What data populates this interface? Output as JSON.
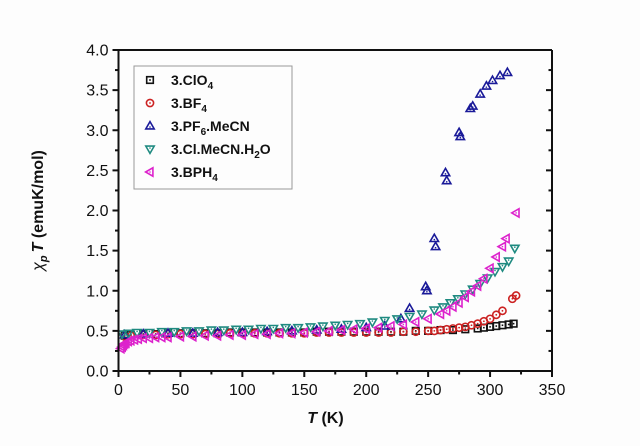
{
  "chart_data": {
    "type": "scatter",
    "title": "",
    "xlabel": "T (K)",
    "xlabel_parts": {
      "italic": "T",
      "rest": " (K)"
    },
    "ylabel": "χp T (emuK/mol)",
    "ylabel_parts": {
      "symbol": "χ",
      "sub": "p",
      "italic": "T",
      "rest": " (emuK/mol)"
    },
    "xlim": [
      0,
      350
    ],
    "ylim": [
      0.0,
      4.0
    ],
    "xticks": [
      0,
      50,
      100,
      150,
      200,
      250,
      300,
      350
    ],
    "xtick_labels": [
      "0",
      "50",
      "100",
      "150",
      "200",
      "250",
      "300",
      "350"
    ],
    "yticks": [
      0.0,
      0.5,
      1.0,
      1.5,
      2.0,
      2.5,
      3.0,
      3.5,
      4.0
    ],
    "ytick_labels": [
      "0.0",
      "0.5",
      "1.0",
      "1.5",
      "2.0",
      "2.5",
      "3.0",
      "3.5",
      "4.0"
    ],
    "grid": false,
    "legend_position": "top-left",
    "series": [
      {
        "name": "3.ClO4",
        "label_main": "3.ClO",
        "label_sub": "4",
        "label_tail": "",
        "marker": "square",
        "color": "#111111",
        "x": [
          5,
          10,
          20,
          30,
          40,
          50,
          60,
          70,
          80,
          90,
          100,
          110,
          120,
          130,
          140,
          150,
          160,
          170,
          180,
          190,
          200,
          210,
          220,
          230,
          240,
          250,
          260,
          270,
          280,
          290,
          295,
          300,
          305,
          310,
          315,
          319
        ],
        "y": [
          0.44,
          0.45,
          0.46,
          0.46,
          0.47,
          0.47,
          0.47,
          0.47,
          0.47,
          0.48,
          0.48,
          0.48,
          0.48,
          0.48,
          0.48,
          0.48,
          0.49,
          0.49,
          0.49,
          0.49,
          0.49,
          0.49,
          0.49,
          0.49,
          0.5,
          0.5,
          0.51,
          0.51,
          0.52,
          0.53,
          0.54,
          0.55,
          0.56,
          0.57,
          0.58,
          0.59
        ]
      },
      {
        "name": "3.BF4",
        "label_main": "3.BF",
        "label_sub": "4",
        "label_tail": "",
        "marker": "circle",
        "color": "#cc2222",
        "x": [
          5,
          10,
          20,
          30,
          40,
          50,
          60,
          70,
          80,
          90,
          100,
          110,
          120,
          130,
          140,
          150,
          160,
          170,
          180,
          190,
          200,
          210,
          220,
          230,
          240,
          250,
          255,
          260,
          265,
          270,
          275,
          280,
          285,
          290,
          295,
          300,
          305,
          310,
          318,
          321
        ],
        "y": [
          0.43,
          0.44,
          0.45,
          0.45,
          0.46,
          0.46,
          0.46,
          0.46,
          0.46,
          0.47,
          0.47,
          0.47,
          0.47,
          0.47,
          0.47,
          0.47,
          0.48,
          0.48,
          0.48,
          0.48,
          0.48,
          0.48,
          0.48,
          0.49,
          0.49,
          0.5,
          0.5,
          0.51,
          0.52,
          0.53,
          0.54,
          0.55,
          0.57,
          0.59,
          0.62,
          0.65,
          0.7,
          0.75,
          0.9,
          0.94
        ]
      },
      {
        "name": "3.PF6.MeCN",
        "label_main": "3.PF",
        "label_sub": "6",
        "label_tail": ".MeCN",
        "marker": "triangle-up",
        "color": "#1a1a99",
        "x": [
          5,
          20,
          40,
          60,
          80,
          100,
          120,
          140,
          160,
          180,
          200,
          215,
          228,
          235,
          248,
          249,
          255,
          256,
          264,
          265,
          275,
          276,
          284,
          286,
          292,
          297,
          302,
          308,
          314
        ],
        "y": [
          0.45,
          0.46,
          0.47,
          0.47,
          0.48,
          0.48,
          0.49,
          0.5,
          0.51,
          0.52,
          0.54,
          0.56,
          0.65,
          0.78,
          1.05,
          1.0,
          1.65,
          1.55,
          2.47,
          2.37,
          2.97,
          2.92,
          3.27,
          3.3,
          3.45,
          3.55,
          3.62,
          3.68,
          3.72
        ]
      },
      {
        "name": "3.Cl.MeCN.H2O",
        "label_main": "3.Cl.MeCN.H",
        "label_sub": "2",
        "label_tail": "O",
        "marker": "triangle-down",
        "color": "#1e8a80",
        "x": [
          3,
          8,
          15,
          25,
          35,
          45,
          55,
          65,
          75,
          85,
          95,
          105,
          115,
          125,
          135,
          145,
          155,
          165,
          175,
          185,
          195,
          205,
          215,
          225,
          235,
          245,
          255,
          262,
          268,
          274,
          280,
          286,
          292,
          298,
          304,
          310,
          315,
          320
        ],
        "y": [
          0.46,
          0.47,
          0.48,
          0.48,
          0.49,
          0.49,
          0.5,
          0.5,
          0.51,
          0.51,
          0.52,
          0.52,
          0.53,
          0.53,
          0.54,
          0.54,
          0.55,
          0.56,
          0.57,
          0.58,
          0.59,
          0.61,
          0.63,
          0.65,
          0.68,
          0.71,
          0.76,
          0.8,
          0.85,
          0.9,
          0.96,
          1.02,
          1.09,
          1.16,
          1.24,
          1.3,
          1.37,
          1.53
        ]
      },
      {
        "name": "3.BPH4",
        "label_main": "3.BPH",
        "label_sub": "4",
        "label_tail": "",
        "marker": "triangle-left",
        "color": "#dd22cc",
        "x": [
          2,
          3,
          4,
          5,
          6,
          8,
          10,
          13,
          16,
          20,
          25,
          30,
          35,
          40,
          50,
          60,
          70,
          80,
          90,
          100,
          110,
          120,
          130,
          140,
          150,
          160,
          170,
          180,
          190,
          200,
          210,
          220,
          230,
          240,
          250,
          260,
          265,
          270,
          275,
          280,
          285,
          290,
          295,
          300,
          305,
          310,
          313,
          321
        ],
        "y": [
          0.28,
          0.3,
          0.32,
          0.34,
          0.35,
          0.37,
          0.38,
          0.39,
          0.4,
          0.41,
          0.41,
          0.42,
          0.42,
          0.42,
          0.43,
          0.43,
          0.44,
          0.44,
          0.45,
          0.45,
          0.46,
          0.46,
          0.47,
          0.47,
          0.48,
          0.49,
          0.5,
          0.51,
          0.52,
          0.53,
          0.54,
          0.56,
          0.58,
          0.61,
          0.65,
          0.71,
          0.75,
          0.8,
          0.85,
          0.92,
          0.99,
          1.06,
          1.15,
          1.28,
          1.42,
          1.55,
          1.65,
          1.97
        ]
      }
    ]
  }
}
